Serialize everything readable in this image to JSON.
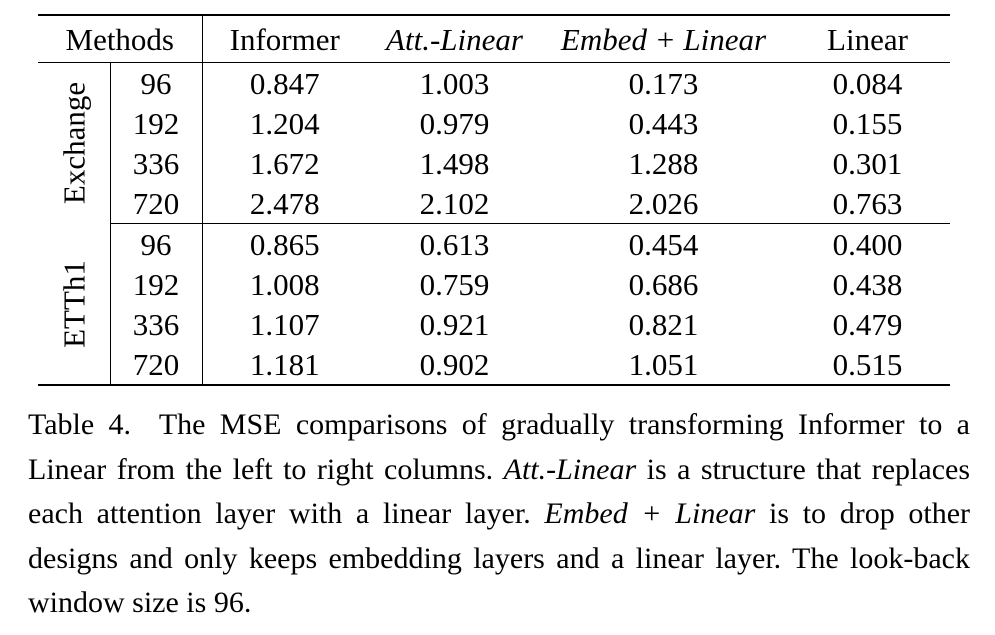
{
  "table": {
    "columns": {
      "methods": "Methods",
      "informer": "Informer",
      "att_linear": "Att.-Linear",
      "embed_linear": "Embed + Linear",
      "linear": "Linear"
    },
    "groups": [
      {
        "dataset": "Exchange",
        "rows": [
          {
            "len": "96",
            "informer": "0.847",
            "att": "1.003",
            "embed": "0.173",
            "linear": "0.084"
          },
          {
            "len": "192",
            "informer": "1.204",
            "att": "0.979",
            "embed": "0.443",
            "linear": "0.155"
          },
          {
            "len": "336",
            "informer": "1.672",
            "att": "1.498",
            "embed": "1.288",
            "linear": "0.301"
          },
          {
            "len": "720",
            "informer": "2.478",
            "att": "2.102",
            "embed": "2.026",
            "linear": "0.763"
          }
        ]
      },
      {
        "dataset": "ETTh1",
        "rows": [
          {
            "len": "96",
            "informer": "0.865",
            "att": "0.613",
            "embed": "0.454",
            "linear": "0.400"
          },
          {
            "len": "192",
            "informer": "1.008",
            "att": "0.759",
            "embed": "0.686",
            "linear": "0.438"
          },
          {
            "len": "336",
            "informer": "1.107",
            "att": "0.921",
            "embed": "0.821",
            "linear": "0.479"
          },
          {
            "len": "720",
            "informer": "1.181",
            "att": "0.902",
            "embed": "1.051",
            "linear": "0.515"
          }
        ]
      }
    ]
  },
  "caption": {
    "label": "Table 4.",
    "text_1": "The MSE comparisons of gradually transforming Informer to a Linear from the left to right columns.",
    "term_1": "Att.-Linear",
    "text_2": "is a structure that replaces each attention layer with a linear layer.",
    "term_2": "Embed + Linear",
    "text_3": "is to drop other designs and only keeps embedding layers and a linear layer. The look-back window size is 96."
  }
}
